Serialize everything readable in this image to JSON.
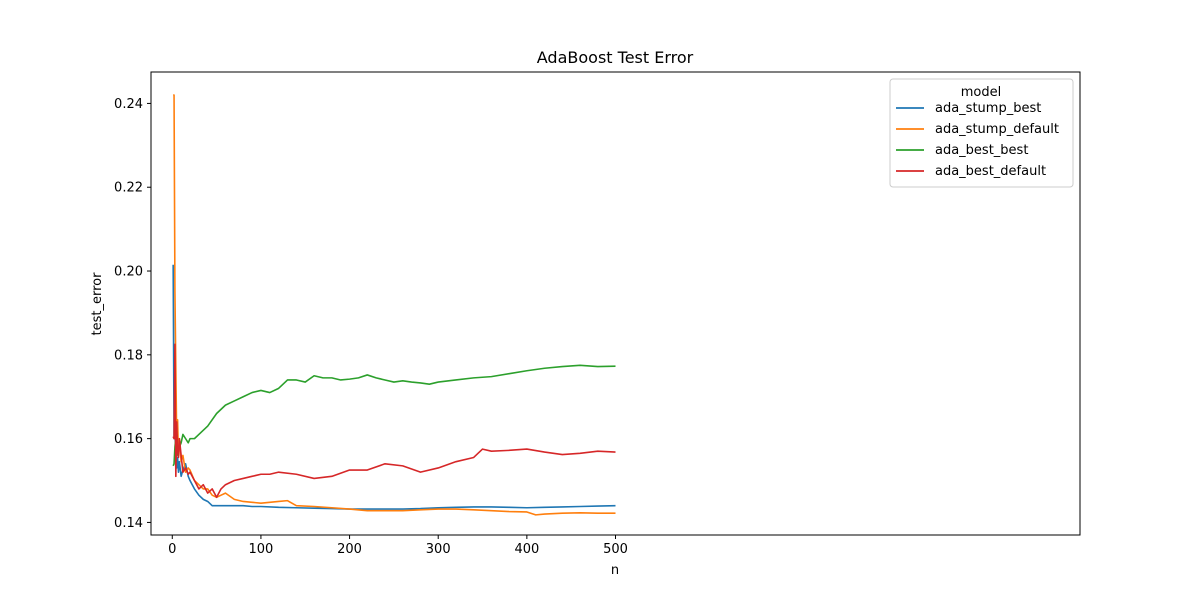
{
  "chart_data": {
    "type": "line",
    "title": "AdaBoost Test Error",
    "xlabel": "n",
    "ylabel": "test_error",
    "xlim": [
      -24,
      1024
    ],
    "ylim": [
      0.137,
      0.2475
    ],
    "xticks": [
      0,
      100,
      200,
      300,
      400,
      500
    ],
    "yticks": [
      0.14,
      0.16,
      0.18,
      0.2,
      0.22,
      0.24
    ],
    "grid": false,
    "legend": {
      "title": "model",
      "location": "top-right"
    },
    "series": [
      {
        "name": "ada_stump_best",
        "color": "#1f77b4",
        "x": [
          1,
          2,
          3,
          4,
          5,
          6,
          7,
          8,
          10,
          12,
          15,
          18,
          20,
          25,
          30,
          35,
          40,
          45,
          50,
          60,
          70,
          80,
          90,
          100,
          120,
          140,
          160,
          180,
          200,
          220,
          240,
          260,
          280,
          300,
          320,
          340,
          360,
          380,
          400,
          420,
          440,
          460,
          480,
          500
        ],
        "y": [
          0.2015,
          0.1605,
          0.161,
          0.157,
          0.153,
          0.1555,
          0.152,
          0.1545,
          0.151,
          0.1525,
          0.154,
          0.151,
          0.15,
          0.148,
          0.1465,
          0.1455,
          0.145,
          0.144,
          0.144,
          0.144,
          0.144,
          0.144,
          0.1438,
          0.1438,
          0.1436,
          0.1435,
          0.1434,
          0.1433,
          0.1432,
          0.1432,
          0.1432,
          0.1432,
          0.1433,
          0.1435,
          0.1436,
          0.1437,
          0.1437,
          0.1436,
          0.1435,
          0.1436,
          0.1437,
          0.1438,
          0.1439,
          0.144
        ]
      },
      {
        "name": "ada_stump_default",
        "color": "#ff7f0e",
        "x": [
          1,
          2,
          3,
          4,
          5,
          6,
          7,
          8,
          10,
          12,
          15,
          18,
          20,
          25,
          30,
          35,
          40,
          45,
          50,
          55,
          60,
          70,
          80,
          90,
          100,
          110,
          120,
          130,
          140,
          160,
          180,
          200,
          220,
          240,
          260,
          280,
          300,
          320,
          340,
          360,
          380,
          400,
          410,
          420,
          440,
          460,
          480,
          500
        ],
        "y": [
          0.242,
          0.242,
          0.195,
          0.177,
          0.16,
          0.1645,
          0.156,
          0.16,
          0.1545,
          0.156,
          0.152,
          0.153,
          0.1525,
          0.15,
          0.149,
          0.148,
          0.148,
          0.1465,
          0.146,
          0.1465,
          0.147,
          0.1455,
          0.145,
          0.1448,
          0.1446,
          0.1448,
          0.145,
          0.1452,
          0.144,
          0.1438,
          0.1435,
          0.1432,
          0.1428,
          0.1428,
          0.1428,
          0.143,
          0.1432,
          0.1432,
          0.143,
          0.1428,
          0.1426,
          0.1425,
          0.1418,
          0.142,
          0.1422,
          0.1423,
          0.1422,
          0.1422
        ]
      },
      {
        "name": "ada_best_best",
        "color": "#2ca02c",
        "x": [
          1,
          2,
          3,
          4,
          5,
          6,
          8,
          10,
          12,
          15,
          18,
          20,
          25,
          30,
          40,
          50,
          60,
          70,
          80,
          90,
          100,
          110,
          120,
          130,
          140,
          150,
          160,
          170,
          180,
          190,
          200,
          210,
          220,
          230,
          240,
          250,
          260,
          270,
          280,
          290,
          300,
          320,
          340,
          360,
          380,
          400,
          420,
          440,
          460,
          480,
          500
        ],
        "y": [
          0.1535,
          0.154,
          0.158,
          0.16,
          0.156,
          0.157,
          0.158,
          0.159,
          0.161,
          0.16,
          0.159,
          0.16,
          0.16,
          0.161,
          0.163,
          0.166,
          0.168,
          0.169,
          0.17,
          0.171,
          0.1715,
          0.171,
          0.172,
          0.174,
          0.174,
          0.1735,
          0.175,
          0.1745,
          0.1745,
          0.174,
          0.1742,
          0.1745,
          0.1752,
          0.1745,
          0.174,
          0.1735,
          0.1738,
          0.1735,
          0.1733,
          0.173,
          0.1735,
          0.174,
          0.1745,
          0.1748,
          0.1755,
          0.1762,
          0.1768,
          0.1772,
          0.1775,
          0.1772,
          0.1773
        ]
      },
      {
        "name": "ada_best_default",
        "color": "#d62728",
        "x": [
          1,
          2,
          3,
          4,
          5,
          6,
          7,
          8,
          10,
          12,
          15,
          18,
          20,
          25,
          30,
          35,
          40,
          45,
          50,
          55,
          60,
          70,
          80,
          90,
          100,
          110,
          120,
          140,
          160,
          180,
          200,
          220,
          240,
          260,
          280,
          300,
          320,
          340,
          350,
          360,
          380,
          400,
          420,
          440,
          460,
          480,
          500
        ],
        "y": [
          0.1605,
          0.16,
          0.1825,
          0.151,
          0.164,
          0.157,
          0.1555,
          0.16,
          0.156,
          0.152,
          0.153,
          0.1515,
          0.152,
          0.15,
          0.148,
          0.149,
          0.147,
          0.148,
          0.146,
          0.148,
          0.149,
          0.15,
          0.1505,
          0.151,
          0.1515,
          0.1515,
          0.152,
          0.1515,
          0.1505,
          0.151,
          0.1525,
          0.1525,
          0.154,
          0.1535,
          0.152,
          0.153,
          0.1545,
          0.1555,
          0.1575,
          0.157,
          0.1572,
          0.1575,
          0.1568,
          0.1562,
          0.1565,
          0.157,
          0.1568
        ]
      }
    ]
  }
}
